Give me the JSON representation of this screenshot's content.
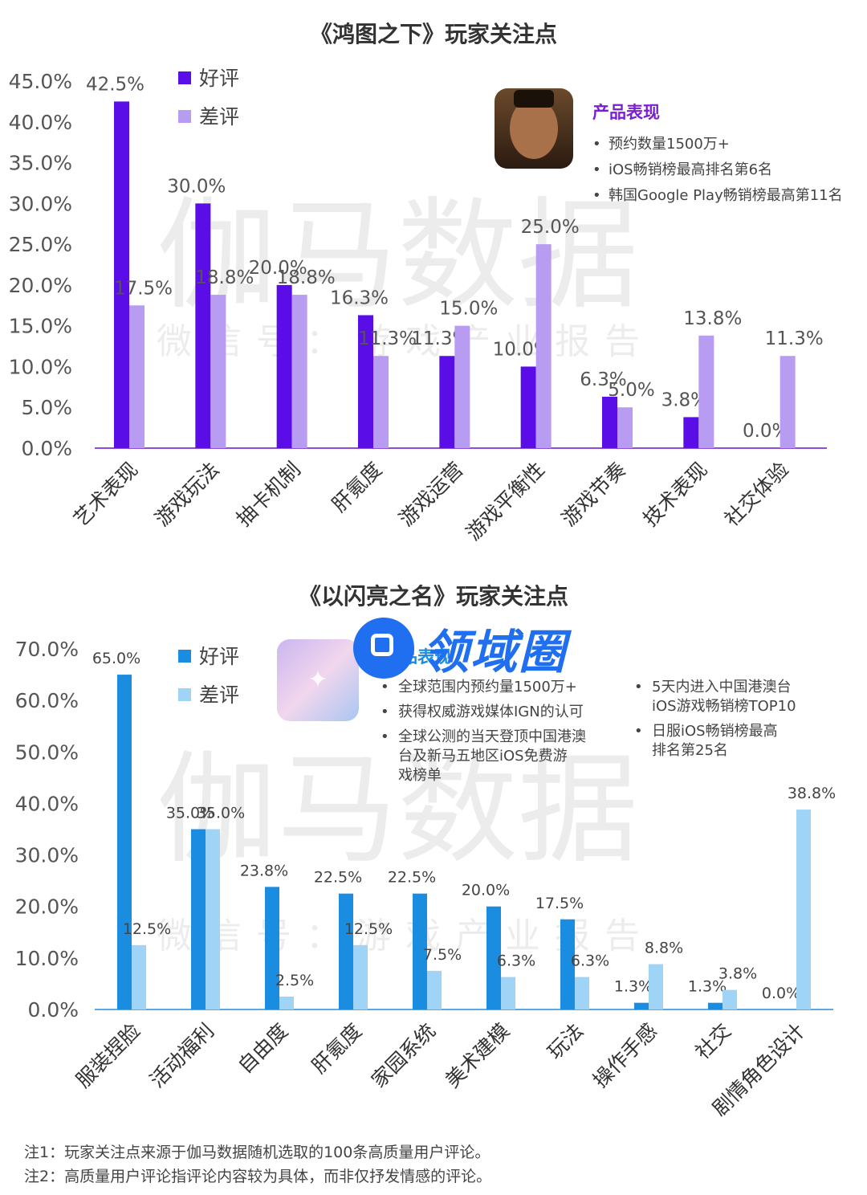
{
  "chart_data": [
    {
      "type": "bar",
      "title": "《鸿图之下》玩家关注点",
      "categories": [
        "艺术表现",
        "游戏玩法",
        "抽卡机制",
        "肝氪度",
        "游戏运营",
        "游戏平衡性",
        "游戏节奏",
        "技术表现",
        "社交体验"
      ],
      "series": [
        {
          "name": "好评",
          "color": "#5b0de8",
          "values": [
            42.5,
            30.0,
            20.0,
            16.3,
            11.3,
            10.0,
            6.3,
            3.8,
            0.0
          ],
          "labels": [
            "42.5%",
            "30.0%",
            "20.0%",
            "16.3%",
            "11.3%",
            "10.0%",
            "6.3%",
            "3.8%",
            "0.0%"
          ]
        },
        {
          "name": "差评",
          "color": "#b79cf2",
          "values": [
            17.5,
            18.8,
            18.8,
            11.3,
            15.0,
            25.0,
            5.0,
            13.8,
            11.3
          ],
          "labels": [
            "17.5%",
            "18.8%",
            "18.8%",
            "11.3%",
            "15.0%",
            "25.0%",
            "5.0%",
            "13.8%",
            "11.3%"
          ]
        }
      ],
      "yticks": [
        "0.0%",
        "5.0%",
        "10.0%",
        "15.0%",
        "20.0%",
        "25.0%",
        "30.0%",
        "35.0%",
        "40.0%",
        "45.0%"
      ],
      "ylim": [
        0,
        45
      ],
      "legend": "top-left",
      "axis_color": "#8a4fd6",
      "info_box": {
        "title": "产品表现",
        "title_color": "#7a1fd0",
        "items": [
          "预约数量1500万+",
          "iOS畅销榜最高排名第6名",
          "韩国Google Play畅销榜最高第11名"
        ]
      }
    },
    {
      "type": "bar",
      "title": "《以闪亮之名》玩家关注点",
      "categories": [
        "服装捏脸",
        "活动福利",
        "自由度",
        "肝氪度",
        "家园系统",
        "美术建模",
        "玩法",
        "操作手感",
        "社交",
        "剧情角色设计"
      ],
      "series": [
        {
          "name": "好评",
          "color": "#1b8de0",
          "values": [
            65.0,
            35.0,
            23.8,
            22.5,
            22.5,
            20.0,
            17.5,
            1.3,
            1.3,
            0.0
          ],
          "labels": [
            "65.0%",
            "35.0%",
            "23.8%",
            "22.5%",
            "22.5%",
            "20.0%",
            "17.5%",
            "1.3%",
            "1.3%",
            "0.0%"
          ]
        },
        {
          "name": "差评",
          "color": "#9fd4f7",
          "values": [
            12.5,
            35.0,
            2.5,
            12.5,
            7.5,
            6.3,
            6.3,
            8.8,
            3.8,
            38.8
          ],
          "labels": [
            "12.5%",
            "35.0%",
            "2.5%",
            "12.5%",
            "7.5%",
            "6.3%",
            "6.3%",
            "8.8%",
            "3.8%",
            "38.8%"
          ]
        }
      ],
      "yticks": [
        "0.0%",
        "10.0%",
        "20.0%",
        "30.0%",
        "40.0%",
        "50.0%",
        "60.0%",
        "70.0%"
      ],
      "ylim": [
        0,
        70
      ],
      "legend": "top-left",
      "axis_color": "#5aa9e6",
      "info_box": {
        "title": "产品表现",
        "title_color": "#1b8de0",
        "items_left": [
          "全球范围内预约量1500万+",
          "获得权威游戏媒体IGN的认可",
          "全球公测的当天登顶中国港澳台及新马五地区iOS免费游戏榜单"
        ],
        "items_right": [
          "5天内进入中国港澳台iOS游戏畅销榜TOP10",
          "日服iOS畅销榜最高排名第25名"
        ]
      }
    }
  ],
  "watermark": {
    "big": "伽马数据",
    "small": "微信号：游戏产业报告"
  },
  "badge": {
    "text": "领域圈"
  },
  "notes": [
    "注1：玩家关注点来源于伽马数据随机选取的100条高质量用户评论。",
    "注2：高质量用户评论指评论内容较为具体，而非仅抒发情感的评论。"
  ]
}
